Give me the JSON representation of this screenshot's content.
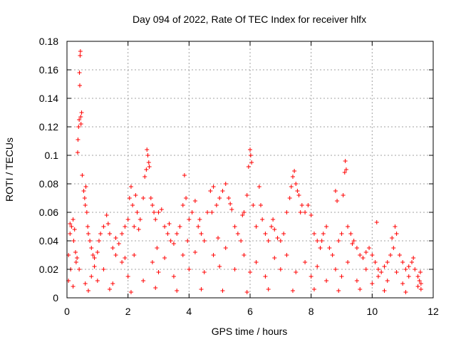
{
  "chart_data": {
    "type": "scatter",
    "title": "Day 094 of 2022, Rate Of TEC Index for receiver hlfx",
    "xlabel": "GPS time / hours",
    "ylabel": "ROTI / TECUs",
    "xlim": [
      0,
      12
    ],
    "ylim": [
      0,
      0.18
    ],
    "xticks": [
      "0",
      "2",
      "4",
      "6",
      "8",
      "10",
      "12"
    ],
    "yticks": [
      "0",
      "0.02",
      "0.04",
      "0.06",
      "0.08",
      "0.1",
      "0.12",
      "0.14",
      "0.16",
      "0.18"
    ],
    "grid": true,
    "legend": "none",
    "marker": "+",
    "color": "#ff0000",
    "series": [
      {
        "points": [
          [
            0.05,
            0.012
          ],
          [
            0.05,
            0.03
          ],
          [
            0.1,
            0.045
          ],
          [
            0.1,
            0.052
          ],
          [
            0.12,
            0.02
          ],
          [
            0.15,
            0.05
          ],
          [
            0.2,
            0.055
          ],
          [
            0.22,
            0.04
          ],
          [
            0.25,
            0.048
          ],
          [
            0.28,
            0.032
          ],
          [
            0.3,
            0.025
          ],
          [
            0.33,
            0.028
          ],
          [
            0.35,
            0.102
          ],
          [
            0.36,
            0.111
          ],
          [
            0.38,
            0.12
          ],
          [
            0.4,
            0.125
          ],
          [
            0.41,
            0.158
          ],
          [
            0.42,
            0.149
          ],
          [
            0.43,
            0.17
          ],
          [
            0.44,
            0.173
          ],
          [
            0.45,
            0.127
          ],
          [
            0.46,
            0.122
          ],
          [
            0.48,
            0.13
          ],
          [
            0.5,
            0.086
          ],
          [
            0.55,
            0.075
          ],
          [
            0.58,
            0.07
          ],
          [
            0.6,
            0.065
          ],
          [
            0.62,
            0.078
          ],
          [
            0.65,
            0.06
          ],
          [
            0.68,
            0.05
          ],
          [
            0.7,
            0.045
          ],
          [
            0.75,
            0.04
          ],
          [
            0.8,
            0.035
          ],
          [
            0.85,
            0.03
          ],
          [
            0.9,
            0.028
          ],
          [
            1.0,
            0.032
          ],
          [
            1.05,
            0.04
          ],
          [
            1.1,
            0.045
          ],
          [
            1.2,
            0.05
          ],
          [
            1.3,
            0.058
          ],
          [
            1.35,
            0.052
          ],
          [
            1.4,
            0.045
          ],
          [
            1.5,
            0.035
          ],
          [
            1.6,
            0.03
          ],
          [
            1.7,
            0.038
          ],
          [
            1.8,
            0.045
          ],
          [
            1.9,
            0.05
          ],
          [
            2.0,
            0.055
          ],
          [
            2.05,
            0.07
          ],
          [
            2.1,
            0.078
          ],
          [
            2.15,
            0.065
          ],
          [
            2.2,
            0.05
          ],
          [
            2.25,
            0.072
          ],
          [
            2.3,
            0.06
          ],
          [
            2.4,
            0.055
          ],
          [
            2.5,
            0.07
          ],
          [
            2.55,
            0.085
          ],
          [
            2.6,
            0.09
          ],
          [
            2.62,
            0.104
          ],
          [
            2.65,
            0.1
          ],
          [
            2.68,
            0.095
          ],
          [
            2.7,
            0.092
          ],
          [
            2.75,
            0.07
          ],
          [
            2.8,
            0.065
          ],
          [
            2.85,
            0.06
          ],
          [
            2.9,
            0.055
          ],
          [
            3.0,
            0.06
          ],
          [
            3.1,
            0.062
          ],
          [
            3.2,
            0.05
          ],
          [
            3.3,
            0.045
          ],
          [
            3.4,
            0.04
          ],
          [
            3.5,
            0.038
          ],
          [
            3.6,
            0.045
          ],
          [
            3.7,
            0.05
          ],
          [
            3.8,
            0.065
          ],
          [
            3.85,
            0.086
          ],
          [
            3.9,
            0.07
          ],
          [
            4.0,
            0.055
          ],
          [
            4.1,
            0.06
          ],
          [
            4.2,
            0.068
          ],
          [
            4.3,
            0.05
          ],
          [
            4.4,
            0.045
          ],
          [
            4.5,
            0.04
          ],
          [
            4.6,
            0.06
          ],
          [
            4.7,
            0.075
          ],
          [
            4.8,
            0.078
          ],
          [
            4.9,
            0.065
          ],
          [
            5.0,
            0.07
          ],
          [
            5.1,
            0.075
          ],
          [
            5.2,
            0.08
          ],
          [
            5.3,
            0.07
          ],
          [
            5.4,
            0.062
          ],
          [
            5.5,
            0.05
          ],
          [
            5.6,
            0.045
          ],
          [
            5.7,
            0.04
          ],
          [
            5.8,
            0.06
          ],
          [
            5.9,
            0.072
          ],
          [
            5.95,
            0.092
          ],
          [
            6.0,
            0.104
          ],
          [
            6.02,
            0.1
          ],
          [
            6.05,
            0.095
          ],
          [
            6.1,
            0.065
          ],
          [
            6.2,
            0.05
          ],
          [
            6.3,
            0.078
          ],
          [
            6.35,
            0.065
          ],
          [
            6.4,
            0.055
          ],
          [
            6.5,
            0.045
          ],
          [
            6.6,
            0.04
          ],
          [
            6.7,
            0.05
          ],
          [
            6.8,
            0.048
          ],
          [
            6.9,
            0.042
          ],
          [
            7.0,
            0.04
          ],
          [
            7.1,
            0.045
          ],
          [
            7.2,
            0.06
          ],
          [
            7.3,
            0.07
          ],
          [
            7.35,
            0.078
          ],
          [
            7.4,
            0.085
          ],
          [
            7.45,
            0.089
          ],
          [
            7.5,
            0.08
          ],
          [
            7.55,
            0.075
          ],
          [
            7.6,
            0.072
          ],
          [
            7.7,
            0.065
          ],
          [
            7.8,
            0.06
          ],
          [
            7.9,
            0.065
          ],
          [
            8.0,
            0.058
          ],
          [
            8.1,
            0.045
          ],
          [
            8.2,
            0.04
          ],
          [
            8.3,
            0.035
          ],
          [
            8.4,
            0.045
          ],
          [
            8.5,
            0.05
          ],
          [
            8.6,
            0.035
          ],
          [
            8.7,
            0.03
          ],
          [
            8.8,
            0.075
          ],
          [
            8.85,
            0.068
          ],
          [
            8.9,
            0.04
          ],
          [
            9.0,
            0.045
          ],
          [
            9.05,
            0.072
          ],
          [
            9.1,
            0.088
          ],
          [
            9.12,
            0.096
          ],
          [
            9.15,
            0.09
          ],
          [
            9.2,
            0.05
          ],
          [
            9.3,
            0.045
          ],
          [
            9.4,
            0.04
          ],
          [
            9.5,
            0.035
          ],
          [
            9.6,
            0.03
          ],
          [
            9.7,
            0.028
          ],
          [
            9.8,
            0.032
          ],
          [
            9.9,
            0.035
          ],
          [
            10.0,
            0.03
          ],
          [
            10.1,
            0.025
          ],
          [
            10.15,
            0.053
          ],
          [
            10.2,
            0.02
          ],
          [
            10.3,
            0.018
          ],
          [
            10.4,
            0.022
          ],
          [
            10.5,
            0.025
          ],
          [
            10.6,
            0.03
          ],
          [
            10.7,
            0.035
          ],
          [
            10.75,
            0.05
          ],
          [
            10.8,
            0.045
          ],
          [
            10.9,
            0.03
          ],
          [
            11.0,
            0.025
          ],
          [
            11.1,
            0.02
          ],
          [
            11.2,
            0.022
          ],
          [
            11.3,
            0.025
          ],
          [
            11.4,
            0.02
          ],
          [
            11.5,
            0.015
          ],
          [
            11.55,
            0.012
          ],
          [
            11.6,
            0.01
          ],
          [
            11.6,
            0.006
          ],
          [
            11.58,
            0.018
          ],
          [
            0.2,
            0.008
          ],
          [
            0.6,
            0.01
          ],
          [
            1.0,
            0.012
          ],
          [
            1.5,
            0.01
          ],
          [
            2.0,
            0.015
          ],
          [
            2.5,
            0.012
          ],
          [
            3.0,
            0.018
          ],
          [
            3.5,
            0.015
          ],
          [
            4.0,
            0.02
          ],
          [
            4.5,
            0.018
          ],
          [
            5.0,
            0.022
          ],
          [
            5.5,
            0.02
          ],
          [
            6.0,
            0.018
          ],
          [
            6.5,
            0.015
          ],
          [
            7.0,
            0.02
          ],
          [
            7.5,
            0.018
          ],
          [
            8.0,
            0.015
          ],
          [
            8.5,
            0.012
          ],
          [
            9.0,
            0.015
          ],
          [
            9.5,
            0.012
          ],
          [
            10.0,
            0.01
          ],
          [
            10.5,
            0.012
          ],
          [
            11.0,
            0.01
          ],
          [
            11.5,
            0.008
          ],
          [
            0.4,
            0.02
          ],
          [
            0.8,
            0.015
          ],
          [
            1.2,
            0.02
          ],
          [
            1.8,
            0.025
          ],
          [
            2.2,
            0.03
          ],
          [
            2.8,
            0.025
          ],
          [
            3.2,
            0.028
          ],
          [
            3.8,
            0.03
          ],
          [
            4.2,
            0.032
          ],
          [
            4.8,
            0.03
          ],
          [
            5.2,
            0.035
          ],
          [
            5.8,
            0.03
          ],
          [
            6.2,
            0.025
          ],
          [
            6.8,
            0.028
          ],
          [
            7.2,
            0.03
          ],
          [
            7.8,
            0.025
          ],
          [
            8.2,
            0.022
          ],
          [
            8.8,
            0.02
          ],
          [
            9.2,
            0.025
          ],
          [
            9.8,
            0.02
          ],
          [
            10.2,
            0.015
          ],
          [
            10.8,
            0.018
          ],
          [
            11.2,
            0.015
          ],
          [
            0.7,
            0.005
          ],
          [
            1.4,
            0.006
          ],
          [
            2.1,
            0.004
          ],
          [
            2.9,
            0.007
          ],
          [
            3.6,
            0.005
          ],
          [
            4.4,
            0.006
          ],
          [
            5.1,
            0.005
          ],
          [
            5.9,
            0.004
          ],
          [
            6.6,
            0.006
          ],
          [
            7.4,
            0.005
          ],
          [
            8.1,
            0.006
          ],
          [
            8.9,
            0.005
          ],
          [
            9.6,
            0.006
          ],
          [
            10.4,
            0.005
          ],
          [
            11.1,
            0.004
          ],
          [
            1.6,
            0.042
          ],
          [
            2.35,
            0.048
          ],
          [
            3.35,
            0.052
          ],
          [
            4.35,
            0.055
          ],
          [
            4.75,
            0.06
          ],
          [
            5.35,
            0.066
          ],
          [
            5.75,
            0.058
          ],
          [
            6.75,
            0.055
          ],
          [
            7.65,
            0.06
          ],
          [
            8.35,
            0.04
          ],
          [
            9.35,
            0.038
          ],
          [
            10.65,
            0.042
          ],
          [
            11.35,
            0.028
          ],
          [
            0.9,
            0.022
          ],
          [
            1.9,
            0.028
          ],
          [
            2.95,
            0.035
          ],
          [
            3.95,
            0.04
          ],
          [
            4.95,
            0.042
          ]
        ]
      }
    ]
  }
}
